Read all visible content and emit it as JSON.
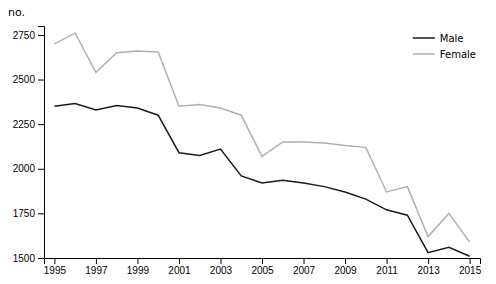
{
  "chart_data": {
    "type": "line",
    "ylabel": "no.",
    "x": [
      1995,
      1996,
      1997,
      1998,
      1999,
      2000,
      2001,
      2002,
      2003,
      2004,
      2005,
      2006,
      2007,
      2008,
      2009,
      2010,
      2011,
      2012,
      2013,
      2014,
      2015
    ],
    "series": [
      {
        "name": "Male",
        "color": "#1a1a1a",
        "values": [
          2350,
          2365,
          2330,
          2355,
          2340,
          2300,
          2090,
          2075,
          2110,
          1960,
          1920,
          1935,
          1920,
          1900,
          1870,
          1830,
          1770,
          1740,
          1530,
          1560,
          1510
        ]
      },
      {
        "name": "Female",
        "color": "#b0b0b0",
        "values": [
          2700,
          2760,
          2540,
          2650,
          2660,
          2655,
          2350,
          2360,
          2340,
          2300,
          2070,
          2150,
          2150,
          2145,
          2130,
          2120,
          1870,
          1900,
          1620,
          1750,
          1590
        ]
      }
    ],
    "xlim": [
      1994.5,
      2015.5
    ],
    "xticks": [
      1995,
      1997,
      1999,
      2001,
      2003,
      2005,
      2007,
      2009,
      2011,
      2013,
      2015
    ],
    "ylim": [
      1500,
      2800
    ],
    "yticks": [
      1500,
      1750,
      2000,
      2250,
      2500,
      2750
    ],
    "grid": false,
    "legend": "top-right"
  }
}
